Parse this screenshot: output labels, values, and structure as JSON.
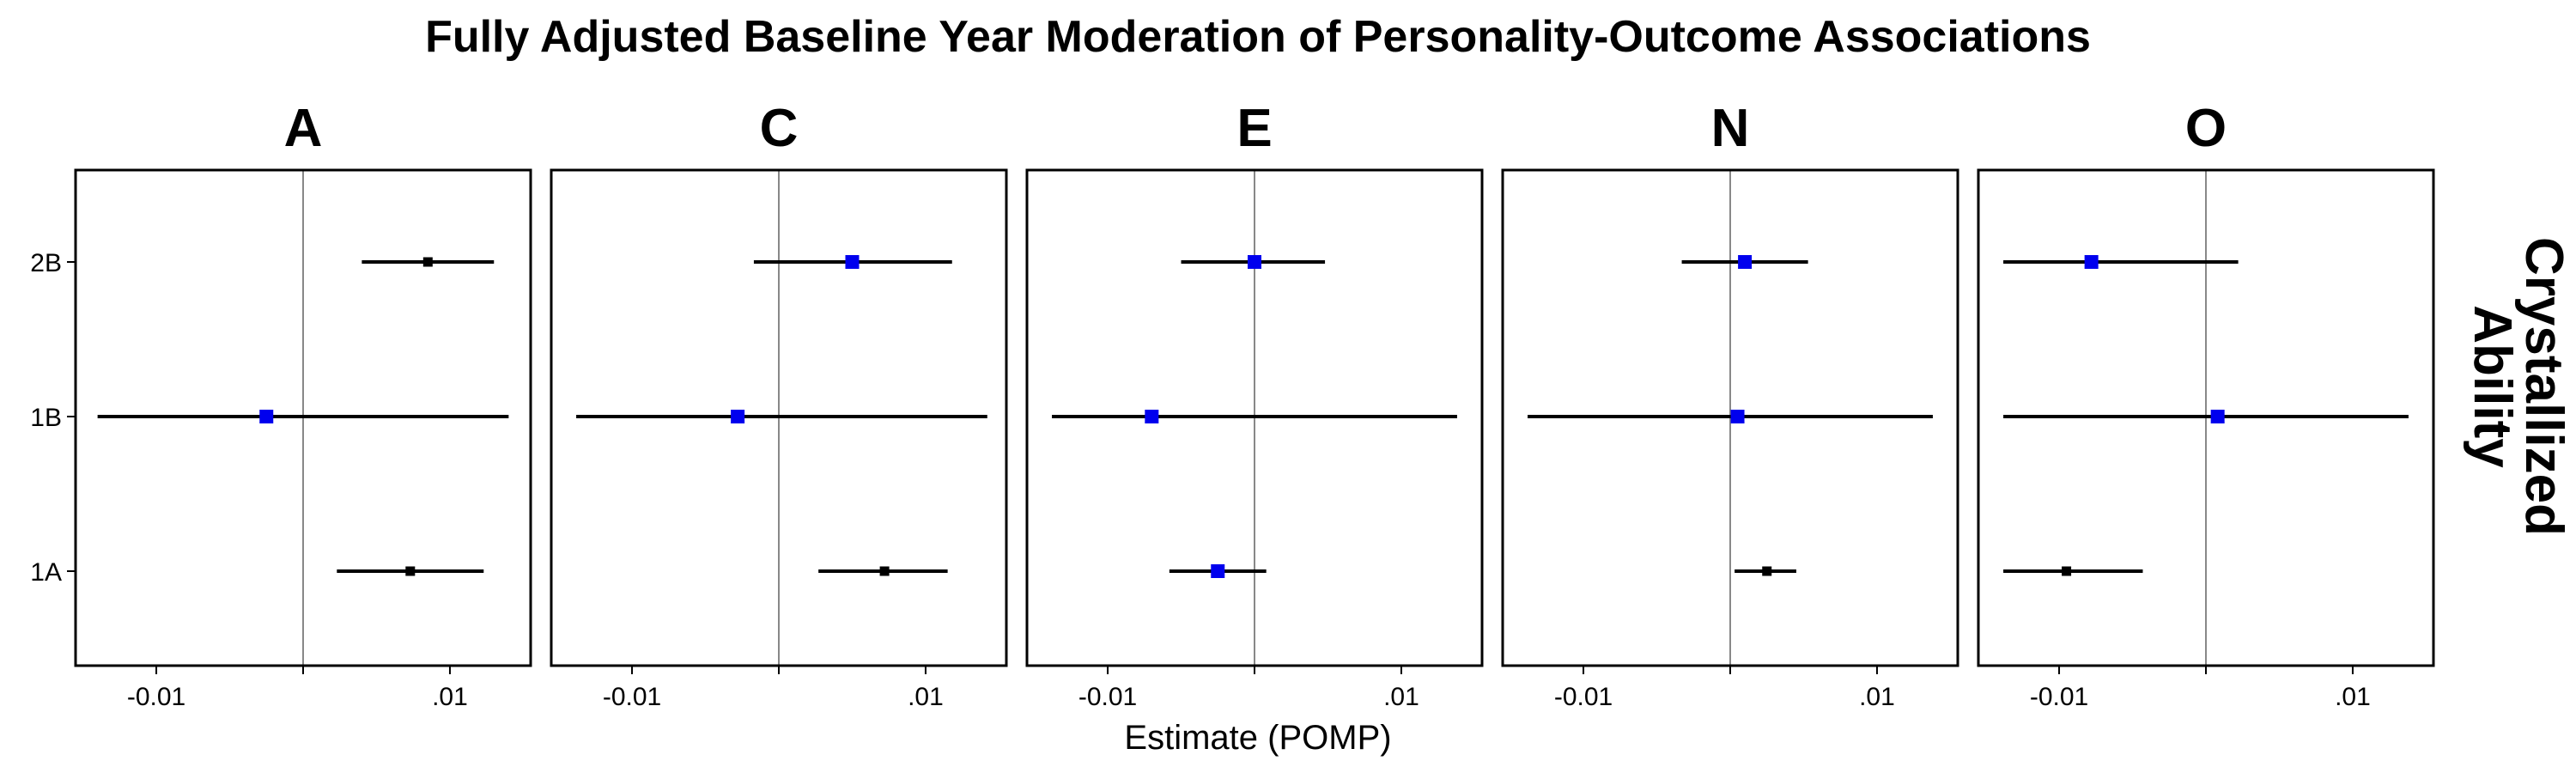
{
  "chart_data": {
    "type": "forest",
    "title": "Fully Adjusted Baseline Year Moderation of Personality-Outcome Associations",
    "xlabel": "Estimate (POMP)",
    "strip_label": [
      "Crystallized",
      "Ability"
    ],
    "xlim": [
      -0.0155,
      0.0155
    ],
    "x_ticks": [
      -0.01,
      0.01
    ],
    "x_tick_labels": [
      "-0.01",
      ".01"
    ],
    "y_categories": [
      "2B",
      "1B",
      "1A"
    ],
    "reference_line": 0,
    "colors": {
      "significant": "#0000ee",
      "nonsignificant": "#000000",
      "ci": "#000000",
      "reference": "#888888"
    },
    "panels": [
      {
        "facet": "A",
        "points": [
          {
            "study": "2B",
            "estimate": 0.0085,
            "lower": 0.004,
            "upper": 0.013,
            "significant": false
          },
          {
            "study": "1B",
            "estimate": -0.0025,
            "lower": -0.014,
            "upper": 0.014,
            "significant": true
          },
          {
            "study": "1A",
            "estimate": 0.0073,
            "lower": 0.0023,
            "upper": 0.0123,
            "significant": false
          }
        ]
      },
      {
        "facet": "C",
        "points": [
          {
            "study": "2B",
            "estimate": 0.005,
            "lower": -0.0017,
            "upper": 0.0118,
            "significant": true
          },
          {
            "study": "1B",
            "estimate": -0.0028,
            "lower": -0.0138,
            "upper": 0.0142,
            "significant": true
          },
          {
            "study": "1A",
            "estimate": 0.0072,
            "lower": 0.0027,
            "upper": 0.0115,
            "significant": false
          }
        ]
      },
      {
        "facet": "E",
        "points": [
          {
            "study": "2B",
            "estimate": 0.0,
            "lower": -0.005,
            "upper": 0.0048,
            "significant": true
          },
          {
            "study": "1B",
            "estimate": -0.007,
            "lower": -0.0138,
            "upper": 0.0138,
            "significant": true
          },
          {
            "study": "1A",
            "estimate": -0.0025,
            "lower": -0.0058,
            "upper": 0.0008,
            "significant": true
          }
        ]
      },
      {
        "facet": "N",
        "points": [
          {
            "study": "2B",
            "estimate": 0.001,
            "lower": -0.0033,
            "upper": 0.0053,
            "significant": true
          },
          {
            "study": "1B",
            "estimate": 0.0005,
            "lower": -0.0138,
            "upper": 0.0138,
            "significant": true
          },
          {
            "study": "1A",
            "estimate": 0.0025,
            "lower": 0.0003,
            "upper": 0.0045,
            "significant": false
          }
        ]
      },
      {
        "facet": "O",
        "points": [
          {
            "study": "2B",
            "estimate": -0.0078,
            "lower": -0.0138,
            "upper": 0.0022,
            "significant": true
          },
          {
            "study": "1B",
            "estimate": 0.0008,
            "lower": -0.0138,
            "upper": 0.0138,
            "significant": true
          },
          {
            "study": "1A",
            "estimate": -0.0095,
            "lower": -0.0138,
            "upper": -0.0043,
            "significant": false
          }
        ]
      }
    ]
  }
}
